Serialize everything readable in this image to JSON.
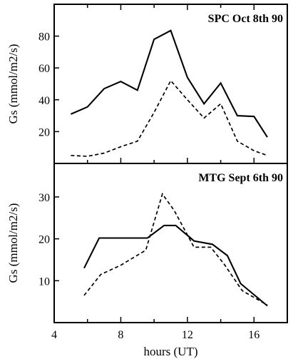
{
  "chart_data": [
    {
      "type": "line",
      "title": "SPC Oct 8th 90",
      "ylabel": "Gs (mmol/m2/s)",
      "xlabel": "",
      "xlim": [
        4,
        18
      ],
      "ylim": [
        0,
        100
      ],
      "yticks": [
        20,
        40,
        60,
        80
      ],
      "grid": false,
      "series": [
        {
          "style": "solid",
          "color": "#000000",
          "x": [
            5,
            6,
            7,
            8,
            9,
            10,
            11,
            12,
            13,
            14,
            15,
            16,
            16.8
          ],
          "y": [
            31,
            35.5,
            47,
            51.5,
            46,
            78,
            83.5,
            54,
            37.5,
            50.5,
            30,
            29.5,
            16.5
          ]
        },
        {
          "style": "dashed",
          "color": "#000000",
          "x": [
            5,
            6,
            7,
            8,
            9,
            10,
            11,
            12,
            13,
            14,
            15,
            16,
            16.8
          ],
          "y": [
            5,
            4.5,
            6.5,
            10.5,
            14,
            32,
            52,
            40,
            28.5,
            37.5,
            14,
            8,
            5
          ]
        }
      ]
    },
    {
      "type": "line",
      "title": "MTG Sept 6th 90",
      "ylabel": "Gs (mmol/m2/s)",
      "xlabel": "hours (UT)",
      "xlim": [
        4,
        18
      ],
      "ylim": [
        0,
        38
      ],
      "xticks": [
        4,
        8,
        12,
        16
      ],
      "yticks": [
        10,
        20,
        30
      ],
      "grid": false,
      "series": [
        {
          "style": "solid",
          "color": "#000000",
          "x": [
            5.8,
            6.7,
            9.6,
            10.6,
            11.3,
            12.4,
            13.5,
            14.4,
            15.2,
            16.8
          ],
          "y": [
            13,
            20.2,
            20.2,
            23.2,
            23.2,
            19.5,
            18.7,
            16,
            9.3,
            4
          ]
        },
        {
          "style": "dashed",
          "color": "#000000",
          "x": [
            5.8,
            6.8,
            8,
            9.5,
            10.5,
            11.2,
            12.4,
            13.4,
            14.2,
            15.3,
            16.8
          ],
          "y": [
            6.5,
            11.5,
            13.7,
            17.3,
            30.7,
            26.8,
            18,
            18,
            14,
            7.6,
            4.2
          ]
        }
      ]
    }
  ]
}
